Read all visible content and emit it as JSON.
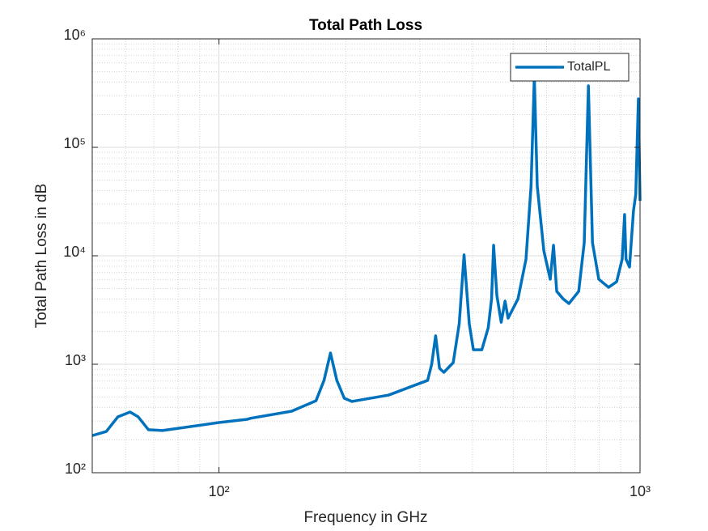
{
  "chart_data": {
    "type": "line",
    "title": "Total Path Loss",
    "x_label": "Frequency in GHz",
    "y_label": "Total Path Loss in dB",
    "xlog": true,
    "ylog": true,
    "grid": true,
    "minor_grid": true,
    "legend": "top-right",
    "xlim": [
      50,
      1000
    ],
    "ylim": [
      100,
      1000000
    ],
    "xticks": [
      {
        "value": 100,
        "label": "10²"
      },
      {
        "value": 1000,
        "label": "10³"
      }
    ],
    "yticks": [
      {
        "value": 100,
        "label": "10²"
      },
      {
        "value": 1000,
        "label": "10³"
      },
      {
        "value": 10000,
        "label": "10⁴"
      },
      {
        "value": 100000,
        "label": "10⁵"
      },
      {
        "value": 1000000,
        "label": "10⁶"
      }
    ],
    "x": [
      50,
      54,
      57.5,
      61.5,
      64.3,
      68,
      73.4,
      100,
      116.7,
      119,
      148.8,
      170,
      177.6,
      184,
      190.5,
      198.4,
      207,
      253,
      313,
      320,
      327,
      334,
      342,
      360,
      372,
      382,
      393,
      402,
      421,
      436,
      444,
      449,
      457,
      468,
      478,
      486,
      513,
      536,
      551,
      561,
      570,
      591,
      612,
      623,
      634,
      657,
      678,
      715,
      737,
      754,
      771,
      798,
      842,
      880,
      907,
      919,
      926,
      944,
      965,
      977,
      991,
      1000
    ],
    "series": [
      {
        "name": "TotalPL",
        "color": "#0072bd",
        "values": [
          220,
          240,
          327,
          363,
          327,
          249,
          245,
          290,
          311,
          318,
          369,
          461,
          710,
          1270,
          710,
          486,
          454,
          520,
          710,
          1000,
          1830,
          918,
          842,
          1035,
          2360,
          10200,
          2360,
          1360,
          1360,
          2170,
          4000,
          12500,
          4330,
          2440,
          3820,
          2660,
          4000,
          9330,
          43900,
          446000,
          43900,
          11100,
          6080,
          12500,
          4700,
          4000,
          3630,
          4700,
          13200,
          369000,
          13200,
          6080,
          5120,
          5770,
          9330,
          24000,
          9330,
          7870,
          26200,
          36900,
          280000,
          32100
        ]
      }
    ]
  }
}
